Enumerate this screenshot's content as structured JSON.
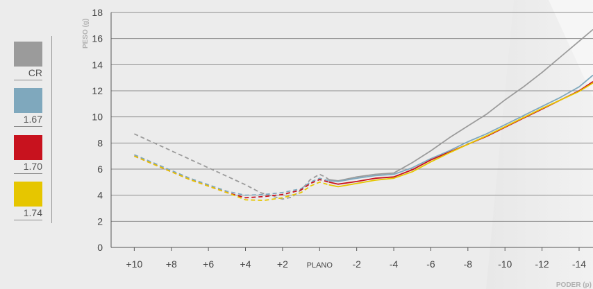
{
  "chart_data": {
    "type": "line",
    "ylabel": "PESO (g)",
    "xlabel": "PODER (p)",
    "ylim": [
      0,
      18
    ],
    "yticks": [
      "0",
      "2",
      "4",
      "6",
      "8",
      "10",
      "12",
      "14",
      "16",
      "18"
    ],
    "x_tick_labels": [
      "+10",
      "+8",
      "+6",
      "+4",
      "+2",
      "PLANO",
      "-2",
      "-4",
      "-6",
      "-8",
      "-10",
      "-12",
      "-14"
    ],
    "x_tick_values": [
      10,
      8,
      6,
      4,
      2,
      0,
      -2,
      -4,
      -6,
      -8,
      -10,
      -12,
      -14
    ],
    "xlim": [
      11.25,
      -14.75
    ],
    "grid": "horizontal",
    "legend_position": "left",
    "note": "Dashed segments for positive powers, solid segments for negative powers",
    "series": [
      {
        "name": "CR",
        "color": "#9b9b9b",
        "dashed": [
          [
            10,
            8.7
          ],
          [
            8,
            7.4
          ],
          [
            6,
            6.1
          ],
          [
            4,
            4.8
          ],
          [
            3.2,
            4.2
          ],
          [
            2.6,
            3.95
          ],
          [
            2,
            3.7
          ],
          [
            1.5,
            3.85
          ],
          [
            1,
            4.4
          ],
          [
            0.5,
            5.2
          ],
          [
            0,
            5.6
          ],
          [
            -0.3,
            5.4
          ],
          [
            -0.5,
            5.2
          ]
        ],
        "solid": [
          [
            -0.5,
            5.2
          ],
          [
            -1,
            5.1
          ],
          [
            -2,
            5.4
          ],
          [
            -3,
            5.6
          ],
          [
            -4,
            5.7
          ],
          [
            -5,
            6.5
          ],
          [
            -6,
            7.4
          ],
          [
            -7,
            8.4
          ],
          [
            -8,
            9.3
          ],
          [
            -9,
            10.2
          ],
          [
            -10,
            11.3
          ],
          [
            -11,
            12.3
          ],
          [
            -12,
            13.4
          ],
          [
            -13,
            14.6
          ],
          [
            -14,
            15.8
          ],
          [
            -14.75,
            16.7
          ]
        ]
      },
      {
        "name": "1.67",
        "color": "#7fa8bd",
        "dashed": [
          [
            10,
            7.1
          ],
          [
            9,
            6.5
          ],
          [
            8,
            5.9
          ],
          [
            7,
            5.3
          ],
          [
            6,
            4.8
          ],
          [
            5,
            4.3
          ],
          [
            4,
            4.0
          ],
          [
            3,
            4.05
          ],
          [
            2,
            4.2
          ],
          [
            1,
            4.5
          ],
          [
            0.5,
            5.0
          ],
          [
            0,
            5.3
          ],
          [
            -0.5,
            5.1
          ]
        ],
        "solid": [
          [
            -0.5,
            5.1
          ],
          [
            -1,
            5.05
          ],
          [
            -2,
            5.3
          ],
          [
            -3,
            5.5
          ],
          [
            -4,
            5.6
          ],
          [
            -5,
            6.1
          ],
          [
            -6,
            6.8
          ],
          [
            -7,
            7.4
          ],
          [
            -8,
            8.1
          ],
          [
            -9,
            8.7
          ],
          [
            -10,
            9.4
          ],
          [
            -11,
            10.1
          ],
          [
            -12,
            10.8
          ],
          [
            -13,
            11.5
          ],
          [
            -14,
            12.3
          ],
          [
            -14.75,
            13.2
          ]
        ]
      },
      {
        "name": "1.70",
        "color": "#c8121e",
        "dashed": [
          [
            10,
            7.0
          ],
          [
            9,
            6.4
          ],
          [
            8,
            5.8
          ],
          [
            7,
            5.2
          ],
          [
            6,
            4.7
          ],
          [
            5,
            4.2
          ],
          [
            4,
            3.8
          ],
          [
            3,
            3.9
          ],
          [
            2,
            4.05
          ],
          [
            1,
            4.4
          ],
          [
            0.5,
            4.9
          ],
          [
            0,
            5.2
          ],
          [
            -0.5,
            5.0
          ]
        ],
        "solid": [
          [
            -0.5,
            5.0
          ],
          [
            -1,
            4.85
          ],
          [
            -2,
            5.05
          ],
          [
            -3,
            5.3
          ],
          [
            -4,
            5.4
          ],
          [
            -5,
            5.95
          ],
          [
            -6,
            6.7
          ],
          [
            -7,
            7.3
          ],
          [
            -8,
            7.9
          ],
          [
            -9,
            8.5
          ],
          [
            -10,
            9.2
          ],
          [
            -11,
            9.9
          ],
          [
            -12,
            10.6
          ],
          [
            -13,
            11.3
          ],
          [
            -14,
            12.0
          ],
          [
            -14.75,
            12.7
          ]
        ]
      },
      {
        "name": "1.74",
        "color": "#e6c600",
        "dashed": [
          [
            10,
            7.0
          ],
          [
            9,
            6.4
          ],
          [
            8,
            5.8
          ],
          [
            7,
            5.2
          ],
          [
            6,
            4.7
          ],
          [
            5,
            4.2
          ],
          [
            4,
            3.65
          ],
          [
            3,
            3.6
          ],
          [
            2,
            3.8
          ],
          [
            1,
            4.2
          ],
          [
            0.5,
            4.7
          ],
          [
            0,
            5.0
          ],
          [
            -0.5,
            4.8
          ]
        ],
        "solid": [
          [
            -0.5,
            4.8
          ],
          [
            -1,
            4.65
          ],
          [
            -2,
            4.9
          ],
          [
            -3,
            5.15
          ],
          [
            -4,
            5.3
          ],
          [
            -5,
            5.8
          ],
          [
            -6,
            6.55
          ],
          [
            -7,
            7.25
          ],
          [
            -8,
            7.9
          ],
          [
            -9,
            8.55
          ],
          [
            -10,
            9.25
          ],
          [
            -11,
            9.95
          ],
          [
            -12,
            10.65
          ],
          [
            -13,
            11.3
          ],
          [
            -14,
            11.95
          ],
          [
            -14.75,
            12.6
          ]
        ]
      }
    ]
  }
}
